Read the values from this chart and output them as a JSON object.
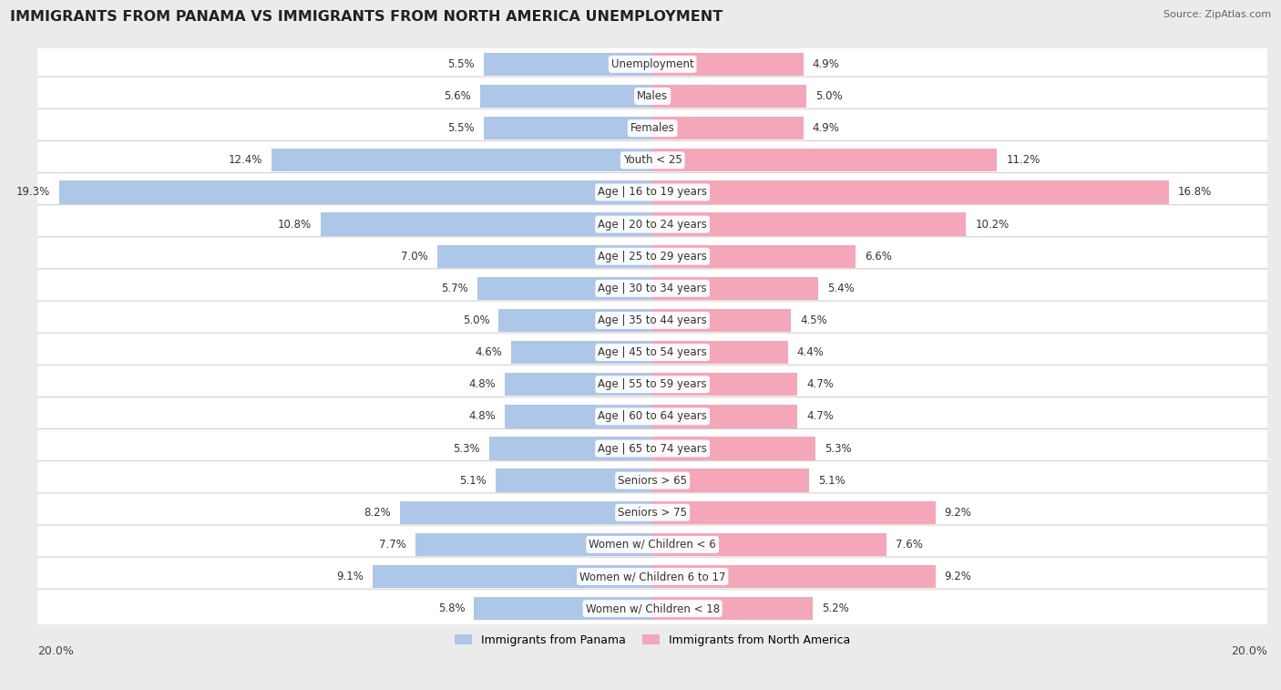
{
  "title": "IMMIGRANTS FROM PANAMA VS IMMIGRANTS FROM NORTH AMERICA UNEMPLOYMENT",
  "source": "Source: ZipAtlas.com",
  "categories": [
    "Unemployment",
    "Males",
    "Females",
    "Youth < 25",
    "Age | 16 to 19 years",
    "Age | 20 to 24 years",
    "Age | 25 to 29 years",
    "Age | 30 to 34 years",
    "Age | 35 to 44 years",
    "Age | 45 to 54 years",
    "Age | 55 to 59 years",
    "Age | 60 to 64 years",
    "Age | 65 to 74 years",
    "Seniors > 65",
    "Seniors > 75",
    "Women w/ Children < 6",
    "Women w/ Children 6 to 17",
    "Women w/ Children < 18"
  ],
  "panama_values": [
    5.5,
    5.6,
    5.5,
    12.4,
    19.3,
    10.8,
    7.0,
    5.7,
    5.0,
    4.6,
    4.8,
    4.8,
    5.3,
    5.1,
    8.2,
    7.7,
    9.1,
    5.8
  ],
  "north_america_values": [
    4.9,
    5.0,
    4.9,
    11.2,
    16.8,
    10.2,
    6.6,
    5.4,
    4.5,
    4.4,
    4.7,
    4.7,
    5.3,
    5.1,
    9.2,
    7.6,
    9.2,
    5.2
  ],
  "panama_color": "#aec6e8",
  "north_america_color": "#f4a7b9",
  "axis_limit": 20.0,
  "background_color": "#ebebeb",
  "row_bg_color": "#ffffff",
  "row_alt_color": "#f5f5f5",
  "legend_panama": "Immigrants from Panama",
  "legend_north_america": "Immigrants from North America"
}
